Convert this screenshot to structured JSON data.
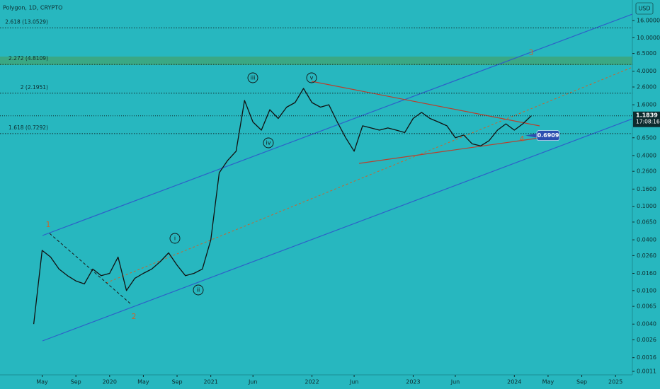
{
  "chart_data": {
    "type": "line",
    "title": "Polygon, 1D, CRYPTO",
    "currency": "USD",
    "log_scale": true,
    "color": "#111111",
    "x": [
      "2019-04",
      "2019-05",
      "2019-06",
      "2019-07",
      "2019-08",
      "2019-09",
      "2019-10",
      "2019-11",
      "2019-12",
      "2020-01",
      "2020-02",
      "2020-03",
      "2020-04",
      "2020-05",
      "2020-06",
      "2020-07",
      "2020-08",
      "2020-09",
      "2020-10",
      "2020-11",
      "2020-12",
      "2021-01",
      "2021-02",
      "2021-03",
      "2021-04",
      "2021-05",
      "2021-06",
      "2021-07",
      "2021-08",
      "2021-09",
      "2021-10",
      "2021-11",
      "2021-12",
      "2022-01",
      "2022-02",
      "2022-03",
      "2022-04",
      "2022-05",
      "2022-06",
      "2022-07",
      "2022-08",
      "2022-09",
      "2022-10",
      "2022-11",
      "2022-12",
      "2023-01",
      "2023-02",
      "2023-03",
      "2023-04",
      "2023-05",
      "2023-06",
      "2023-07",
      "2023-08",
      "2023-09",
      "2023-10",
      "2023-11",
      "2023-12",
      "2024-01",
      "2024-02",
      "2024-03"
    ],
    "values": [
      0.004,
      0.03,
      0.025,
      0.018,
      0.015,
      0.013,
      0.012,
      0.018,
      0.015,
      0.016,
      0.025,
      0.01,
      0.014,
      0.016,
      0.018,
      0.022,
      0.028,
      0.02,
      0.015,
      0.016,
      0.018,
      0.04,
      0.25,
      0.35,
      0.45,
      1.8,
      1.0,
      0.8,
      1.4,
      1.1,
      1.5,
      1.7,
      2.5,
      1.7,
      1.5,
      1.6,
      1.0,
      0.65,
      0.45,
      0.9,
      0.85,
      0.8,
      0.85,
      0.8,
      0.75,
      1.1,
      1.3,
      1.1,
      1.0,
      0.9,
      0.65,
      0.7,
      0.55,
      0.52,
      0.6,
      0.8,
      0.95,
      0.8,
      0.95,
      1.18
    ],
    "xlim": [
      "2018-12",
      "2025-03"
    ],
    "xticks": [
      {
        "value": "2019-05",
        "label": "May"
      },
      {
        "value": "2019-09",
        "label": "Sep"
      },
      {
        "value": "2020-01",
        "label": "2020"
      },
      {
        "value": "2020-05",
        "label": "May"
      },
      {
        "value": "2020-09",
        "label": "Sep"
      },
      {
        "value": "2021-01",
        "label": "2021"
      },
      {
        "value": "2021-06",
        "label": "Jun"
      },
      {
        "value": "2022-01",
        "label": "2022"
      },
      {
        "value": "2022-06",
        "label": "Jun"
      },
      {
        "value": "2023-01",
        "label": "2023"
      },
      {
        "value": "2023-06",
        "label": "Jun"
      },
      {
        "value": "2024-01",
        "label": "2024"
      },
      {
        "value": "2024-05",
        "label": "May"
      },
      {
        "value": "2024-09",
        "label": "Sep"
      },
      {
        "value": "2025-01",
        "label": "2025"
      }
    ],
    "ylim": [
      0.001,
      28
    ],
    "yticks": [
      {
        "value": 16,
        "label": "16.0000"
      },
      {
        "value": 10,
        "label": "10.0000"
      },
      {
        "value": 6.5,
        "label": "6.5000"
      },
      {
        "value": 4,
        "label": "4.0000"
      },
      {
        "value": 2.6,
        "label": "2.6000"
      },
      {
        "value": 1.6,
        "label": "1.6000"
      },
      {
        "value": 0.65,
        "label": "0.6500"
      },
      {
        "value": 0.4,
        "label": "0.4000"
      },
      {
        "value": 0.26,
        "label": "0.2600"
      },
      {
        "value": 0.16,
        "label": "0.1600"
      },
      {
        "value": 0.1,
        "label": "0.1000"
      },
      {
        "value": 0.065,
        "label": "0.0650"
      },
      {
        "value": 0.04,
        "label": "0.0400"
      },
      {
        "value": 0.026,
        "label": "0.0260"
      },
      {
        "value": 0.016,
        "label": "0.0160"
      },
      {
        "value": 0.01,
        "label": "0.0100"
      },
      {
        "value": 0.0065,
        "label": "0.0065"
      },
      {
        "value": 0.004,
        "label": "0.0040"
      },
      {
        "value": 0.0026,
        "label": "0.0026"
      },
      {
        "value": 0.0016,
        "label": "0.0016"
      },
      {
        "value": 0.0011,
        "label": "0.0011"
      }
    ],
    "levels": [
      {
        "label": "2.618 (13.0529)",
        "value": 13.0529
      },
      {
        "label": "2.272 (4.8109)",
        "value": 4.8109
      },
      {
        "label": "2 (2.1951)",
        "value": 2.1951
      },
      {
        "label": "1.618 (0.7292)",
        "value": 0.7292
      }
    ],
    "price_tag": {
      "value": 1.1839,
      "time": "17:08:16"
    },
    "marker_tag": 0.6909,
    "annotations": [
      {
        "text": "1",
        "color": "#c8652e"
      },
      {
        "text": "2",
        "color": "#c8652e"
      },
      {
        "text": "i",
        "circled": true
      },
      {
        "text": "ii",
        "circled": true
      },
      {
        "text": "iii",
        "circled": true
      },
      {
        "text": "iv",
        "circled": true
      },
      {
        "text": "v",
        "circled": true
      },
      {
        "text": "3",
        "color": "#c8652e"
      },
      {
        "text": "4",
        "color": "#c8652e"
      }
    ]
  }
}
